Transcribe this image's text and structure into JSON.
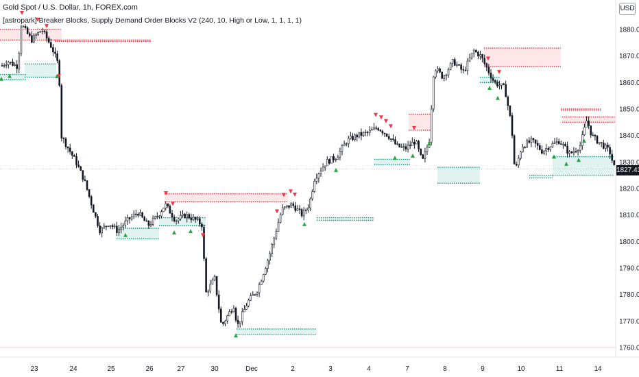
{
  "header": {
    "symbol_line": "Gold Spot / U.S. Dollar, 1h, FOREX.com",
    "indicator_line": "[astropark] Breaker Blocks, Supply Demand Order Blocks V2 (240, 10, High or Low, 1, 1, 1, 1)",
    "currency": "USD"
  },
  "last_price": "1827.43",
  "colors": {
    "candle": "#131722",
    "bull_fill": "#ffffff",
    "supply_zone": "#f23645",
    "demand_zone": "#089981",
    "sell_marker": "#f23645",
    "buy_marker": "#26a641"
  },
  "chart_data": {
    "type": "candlestick",
    "ylim": [
      1758,
      1890
    ],
    "y_ticks": [
      1760,
      1770,
      1780,
      1790,
      1800,
      1810,
      1820,
      1830,
      1840,
      1850,
      1860,
      1870,
      1880
    ],
    "x_tick_labels": [
      "23",
      "24",
      "25",
      "26",
      "27",
      "30",
      "Dec",
      "2",
      "3",
      "4",
      "7",
      "8",
      "9",
      "10",
      "11",
      "14"
    ],
    "price_path": [
      [
        0,
        1866
      ],
      [
        10,
        1868
      ],
      [
        25,
        1866
      ],
      [
        30,
        1882
      ],
      [
        45,
        1876
      ],
      [
        60,
        1880
      ],
      [
        75,
        1873
      ],
      [
        85,
        1866
      ],
      [
        88,
        1840
      ],
      [
        110,
        1830
      ],
      [
        122,
        1823
      ],
      [
        135,
        1812
      ],
      [
        145,
        1804
      ],
      [
        158,
        1807
      ],
      [
        170,
        1804
      ],
      [
        185,
        1808
      ],
      [
        200,
        1811
      ],
      [
        215,
        1806
      ],
      [
        230,
        1810
      ],
      [
        240,
        1814
      ],
      [
        255,
        1808
      ],
      [
        270,
        1810
      ],
      [
        285,
        1808
      ],
      [
        295,
        1806
      ],
      [
        298,
        1780
      ],
      [
        312,
        1786
      ],
      [
        322,
        1768
      ],
      [
        340,
        1776
      ],
      [
        345,
        1768
      ],
      [
        360,
        1777
      ],
      [
        375,
        1782
      ],
      [
        392,
        1795
      ],
      [
        410,
        1812
      ],
      [
        425,
        1814
      ],
      [
        440,
        1810
      ],
      [
        450,
        1814
      ],
      [
        458,
        1824
      ],
      [
        475,
        1830
      ],
      [
        490,
        1832
      ],
      [
        505,
        1838
      ],
      [
        520,
        1840
      ],
      [
        535,
        1841
      ],
      [
        550,
        1843
      ],
      [
        565,
        1840
      ],
      [
        578,
        1836
      ],
      [
        590,
        1835
      ],
      [
        605,
        1838
      ],
      [
        615,
        1830
      ],
      [
        625,
        1838
      ],
      [
        632,
        1866
      ],
      [
        645,
        1862
      ],
      [
        660,
        1868
      ],
      [
        675,
        1864
      ],
      [
        690,
        1872
      ],
      [
        700,
        1870
      ],
      [
        712,
        1864
      ],
      [
        720,
        1860
      ],
      [
        735,
        1858
      ],
      [
        745,
        1844
      ],
      [
        750,
        1826
      ],
      [
        760,
        1836
      ],
      [
        775,
        1838
      ],
      [
        790,
        1834
      ],
      [
        800,
        1836
      ],
      [
        815,
        1838
      ],
      [
        830,
        1833
      ],
      [
        845,
        1836
      ],
      [
        855,
        1846
      ],
      [
        862,
        1840
      ],
      [
        870,
        1838
      ],
      [
        880,
        1836
      ],
      [
        888,
        1834
      ],
      [
        896,
        1827
      ]
    ],
    "supply_zones": [
      {
        "x0": 0,
        "x1": 90,
        "top": 1880,
        "bottom": 1876
      },
      {
        "x0": 80,
        "x1": 220,
        "top": 1876,
        "bottom": 1875.5
      },
      {
        "x0": 240,
        "x1": 420,
        "top": 1818,
        "bottom": 1815
      },
      {
        "x0": 596,
        "x1": 628,
        "top": 1848,
        "bottom": 1842
      },
      {
        "x0": 706,
        "x1": 818,
        "top": 1873,
        "bottom": 1866
      },
      {
        "x0": 818,
        "x1": 876,
        "top": 1850,
        "bottom": 1849.5
      },
      {
        "x0": 820,
        "x1": 898,
        "top": 1847,
        "bottom": 1845
      }
    ],
    "demand_zones": [
      {
        "x0": 0,
        "x1": 38,
        "top": 1863,
        "bottom": 1861
      },
      {
        "x0": 36,
        "x1": 82,
        "top": 1867,
        "bottom": 1862
      },
      {
        "x0": 170,
        "x1": 232,
        "top": 1805,
        "bottom": 1801
      },
      {
        "x0": 232,
        "x1": 300,
        "top": 1809,
        "bottom": 1806
      },
      {
        "x0": 345,
        "x1": 462,
        "top": 1767,
        "bottom": 1765
      },
      {
        "x0": 462,
        "x1": 546,
        "top": 1809,
        "bottom": 1808
      },
      {
        "x0": 546,
        "x1": 598,
        "top": 1831,
        "bottom": 1829
      },
      {
        "x0": 638,
        "x1": 700,
        "top": 1828,
        "bottom": 1822
      },
      {
        "x0": 700,
        "x1": 730,
        "top": 1862,
        "bottom": 1860
      },
      {
        "x0": 772,
        "x1": 806,
        "top": 1825,
        "bottom": 1824
      },
      {
        "x0": 806,
        "x1": 896,
        "top": 1832,
        "bottom": 1825
      }
    ],
    "sell_markers": [
      32,
      55,
      68,
      86,
      242,
      252,
      296,
      404,
      414,
      424,
      430,
      548,
      556,
      563,
      570,
      604,
      712,
      728
    ],
    "buy_markers": [
      2,
      14,
      83,
      183,
      254,
      278,
      344,
      444,
      490,
      576,
      602,
      626,
      714,
      726,
      808,
      826,
      844,
      852
    ]
  }
}
